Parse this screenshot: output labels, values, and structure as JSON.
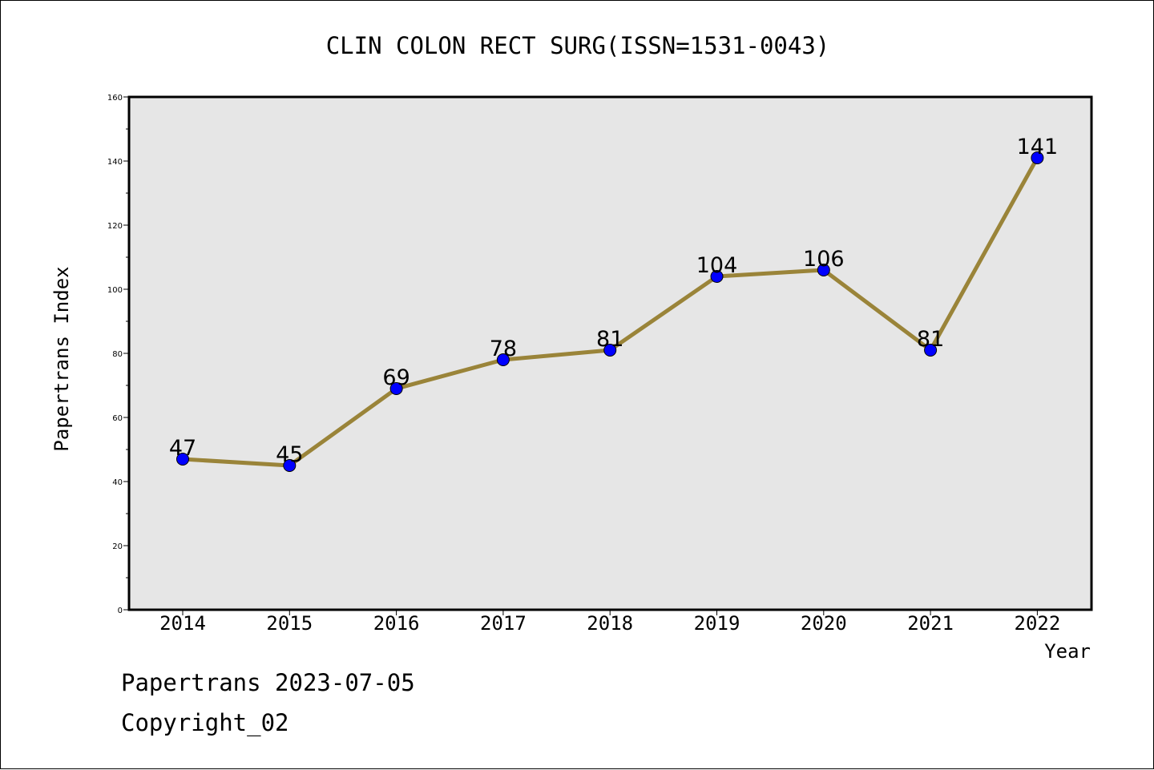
{
  "chart_data": {
    "type": "line",
    "title": "CLIN COLON RECT SURG(ISSN=1531-0043)",
    "xlabel": "Year",
    "ylabel": "Papertrans Index",
    "categories": [
      "2014",
      "2015",
      "2016",
      "2017",
      "2018",
      "2019",
      "2020",
      "2021",
      "2022"
    ],
    "series": [
      {
        "values": [
          47,
          45,
          69,
          78,
          81,
          104,
          106,
          81,
          141
        ]
      }
    ],
    "data_labels": [
      "47",
      "45",
      "69",
      "78",
      "81",
      "104",
      "106",
      "81",
      "141"
    ],
    "ylim": [
      0,
      160
    ],
    "yticks": [
      "0",
      "20",
      "40",
      "60",
      "80",
      "100",
      "120",
      "140",
      "160"
    ],
    "grid": false,
    "colors": {
      "line": "#9a8439",
      "marker": "#0000ff",
      "plot_bg": "#e6e6e6"
    }
  },
  "footer": {
    "date_line": "Papertrans 2023-07-05",
    "copyright_line": "Copyright_02"
  }
}
